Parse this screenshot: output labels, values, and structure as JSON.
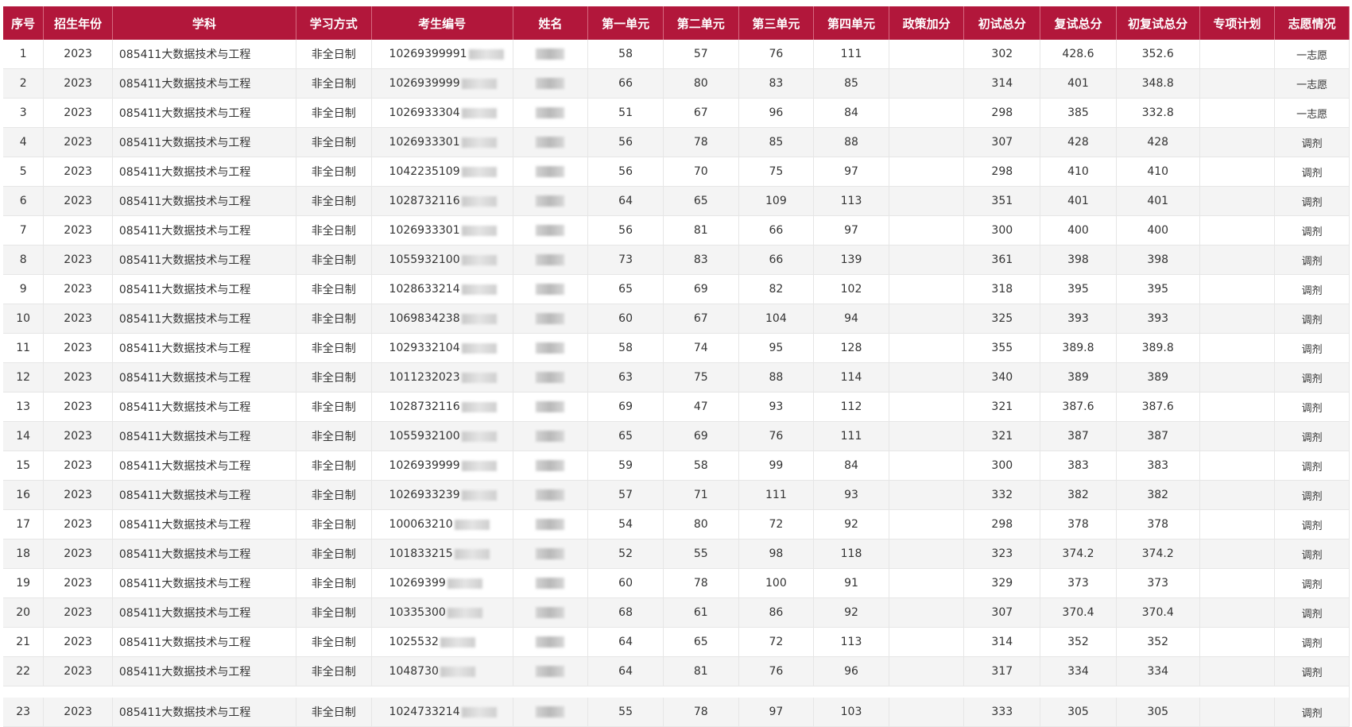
{
  "columns": [
    "序号",
    "招生年份",
    "学科",
    "学习方式",
    "考生编号",
    "姓名",
    "第一单元",
    "第二单元",
    "第三单元",
    "第四单元",
    "政策加分",
    "初试总分",
    "复试总分",
    "初复试总分",
    "专项计划",
    "志愿情况"
  ],
  "rows": [
    {
      "no": "1",
      "year": "2023",
      "subject": "085411大数据技术与工程",
      "mode": "非全日制",
      "id": "10269399991",
      "u1": "58",
      "u2": "57",
      "u3": "76",
      "u4": "111",
      "bonus": "",
      "prelim": "302",
      "retest": "428.6",
      "combined": "352.6",
      "plan": "",
      "wish": "一志愿"
    },
    {
      "no": "2",
      "year": "2023",
      "subject": "085411大数据技术与工程",
      "mode": "非全日制",
      "id": "1026939999",
      "u1": "66",
      "u2": "80",
      "u3": "83",
      "u4": "85",
      "bonus": "",
      "prelim": "314",
      "retest": "401",
      "combined": "348.8",
      "plan": "",
      "wish": "一志愿"
    },
    {
      "no": "3",
      "year": "2023",
      "subject": "085411大数据技术与工程",
      "mode": "非全日制",
      "id": "1026933304",
      "u1": "51",
      "u2": "67",
      "u3": "96",
      "u4": "84",
      "bonus": "",
      "prelim": "298",
      "retest": "385",
      "combined": "332.8",
      "plan": "",
      "wish": "一志愿"
    },
    {
      "no": "4",
      "year": "2023",
      "subject": "085411大数据技术与工程",
      "mode": "非全日制",
      "id": "1026933301",
      "u1": "56",
      "u2": "78",
      "u3": "85",
      "u4": "88",
      "bonus": "",
      "prelim": "307",
      "retest": "428",
      "combined": "428",
      "plan": "",
      "wish": "调剂"
    },
    {
      "no": "5",
      "year": "2023",
      "subject": "085411大数据技术与工程",
      "mode": "非全日制",
      "id": "1042235109",
      "u1": "56",
      "u2": "70",
      "u3": "75",
      "u4": "97",
      "bonus": "",
      "prelim": "298",
      "retest": "410",
      "combined": "410",
      "plan": "",
      "wish": "调剂"
    },
    {
      "no": "6",
      "year": "2023",
      "subject": "085411大数据技术与工程",
      "mode": "非全日制",
      "id": "1028732116",
      "u1": "64",
      "u2": "65",
      "u3": "109",
      "u4": "113",
      "bonus": "",
      "prelim": "351",
      "retest": "401",
      "combined": "401",
      "plan": "",
      "wish": "调剂"
    },
    {
      "no": "7",
      "year": "2023",
      "subject": "085411大数据技术与工程",
      "mode": "非全日制",
      "id": "1026933301",
      "u1": "56",
      "u2": "81",
      "u3": "66",
      "u4": "97",
      "bonus": "",
      "prelim": "300",
      "retest": "400",
      "combined": "400",
      "plan": "",
      "wish": "调剂"
    },
    {
      "no": "8",
      "year": "2023",
      "subject": "085411大数据技术与工程",
      "mode": "非全日制",
      "id": "1055932100",
      "u1": "73",
      "u2": "83",
      "u3": "66",
      "u4": "139",
      "bonus": "",
      "prelim": "361",
      "retest": "398",
      "combined": "398",
      "plan": "",
      "wish": "调剂"
    },
    {
      "no": "9",
      "year": "2023",
      "subject": "085411大数据技术与工程",
      "mode": "非全日制",
      "id": "1028633214",
      "u1": "65",
      "u2": "69",
      "u3": "82",
      "u4": "102",
      "bonus": "",
      "prelim": "318",
      "retest": "395",
      "combined": "395",
      "plan": "",
      "wish": "调剂"
    },
    {
      "no": "10",
      "year": "2023",
      "subject": "085411大数据技术与工程",
      "mode": "非全日制",
      "id": "1069834238",
      "u1": "60",
      "u2": "67",
      "u3": "104",
      "u4": "94",
      "bonus": "",
      "prelim": "325",
      "retest": "393",
      "combined": "393",
      "plan": "",
      "wish": "调剂"
    },
    {
      "no": "11",
      "year": "2023",
      "subject": "085411大数据技术与工程",
      "mode": "非全日制",
      "id": "1029332104",
      "u1": "58",
      "u2": "74",
      "u3": "95",
      "u4": "128",
      "bonus": "",
      "prelim": "355",
      "retest": "389.8",
      "combined": "389.8",
      "plan": "",
      "wish": "调剂"
    },
    {
      "no": "12",
      "year": "2023",
      "subject": "085411大数据技术与工程",
      "mode": "非全日制",
      "id": "1011232023",
      "u1": "63",
      "u2": "75",
      "u3": "88",
      "u4": "114",
      "bonus": "",
      "prelim": "340",
      "retest": "389",
      "combined": "389",
      "plan": "",
      "wish": "调剂"
    },
    {
      "no": "13",
      "year": "2023",
      "subject": "085411大数据技术与工程",
      "mode": "非全日制",
      "id": "1028732116",
      "u1": "69",
      "u2": "47",
      "u3": "93",
      "u4": "112",
      "bonus": "",
      "prelim": "321",
      "retest": "387.6",
      "combined": "387.6",
      "plan": "",
      "wish": "调剂"
    },
    {
      "no": "14",
      "year": "2023",
      "subject": "085411大数据技术与工程",
      "mode": "非全日制",
      "id": "1055932100",
      "u1": "65",
      "u2": "69",
      "u3": "76",
      "u4": "111",
      "bonus": "",
      "prelim": "321",
      "retest": "387",
      "combined": "387",
      "plan": "",
      "wish": "调剂"
    },
    {
      "no": "15",
      "year": "2023",
      "subject": "085411大数据技术与工程",
      "mode": "非全日制",
      "id": "1026939999",
      "u1": "59",
      "u2": "58",
      "u3": "99",
      "u4": "84",
      "bonus": "",
      "prelim": "300",
      "retest": "383",
      "combined": "383",
      "plan": "",
      "wish": "调剂"
    },
    {
      "no": "16",
      "year": "2023",
      "subject": "085411大数据技术与工程",
      "mode": "非全日制",
      "id": "1026933239",
      "u1": "57",
      "u2": "71",
      "u3": "111",
      "u4": "93",
      "bonus": "",
      "prelim": "332",
      "retest": "382",
      "combined": "382",
      "plan": "",
      "wish": "调剂"
    },
    {
      "no": "17",
      "year": "2023",
      "subject": "085411大数据技术与工程",
      "mode": "非全日制",
      "id": "100063210",
      "u1": "54",
      "u2": "80",
      "u3": "72",
      "u4": "92",
      "bonus": "",
      "prelim": "298",
      "retest": "378",
      "combined": "378",
      "plan": "",
      "wish": "调剂"
    },
    {
      "no": "18",
      "year": "2023",
      "subject": "085411大数据技术与工程",
      "mode": "非全日制",
      "id": "101833215",
      "u1": "52",
      "u2": "55",
      "u3": "98",
      "u4": "118",
      "bonus": "",
      "prelim": "323",
      "retest": "374.2",
      "combined": "374.2",
      "plan": "",
      "wish": "调剂"
    },
    {
      "no": "19",
      "year": "2023",
      "subject": "085411大数据技术与工程",
      "mode": "非全日制",
      "id": "10269399",
      "u1": "60",
      "u2": "78",
      "u3": "100",
      "u4": "91",
      "bonus": "",
      "prelim": "329",
      "retest": "373",
      "combined": "373",
      "plan": "",
      "wish": "调剂"
    },
    {
      "no": "20",
      "year": "2023",
      "subject": "085411大数据技术与工程",
      "mode": "非全日制",
      "id": "10335300",
      "u1": "68",
      "u2": "61",
      "u3": "86",
      "u4": "92",
      "bonus": "",
      "prelim": "307",
      "retest": "370.4",
      "combined": "370.4",
      "plan": "",
      "wish": "调剂"
    },
    {
      "no": "21",
      "year": "2023",
      "subject": "085411大数据技术与工程",
      "mode": "非全日制",
      "id": "1025532",
      "u1": "64",
      "u2": "65",
      "u3": "72",
      "u4": "113",
      "bonus": "",
      "prelim": "314",
      "retest": "352",
      "combined": "352",
      "plan": "",
      "wish": "调剂"
    },
    {
      "no": "22",
      "year": "2023",
      "subject": "085411大数据技术与工程",
      "mode": "非全日制",
      "id": "1048730",
      "u1": "64",
      "u2": "81",
      "u3": "76",
      "u4": "96",
      "bonus": "",
      "prelim": "317",
      "retest": "334",
      "combined": "334",
      "plan": "",
      "wish": "调剂"
    },
    {
      "no": "23",
      "year": "2023",
      "subject": "085411大数据技术与工程",
      "mode": "非全日制",
      "id": "1024733214",
      "u1": "55",
      "u2": "78",
      "u3": "97",
      "u4": "103",
      "bonus": "",
      "prelim": "333",
      "retest": "305",
      "combined": "305",
      "plan": "",
      "wish": "调剂"
    }
  ]
}
